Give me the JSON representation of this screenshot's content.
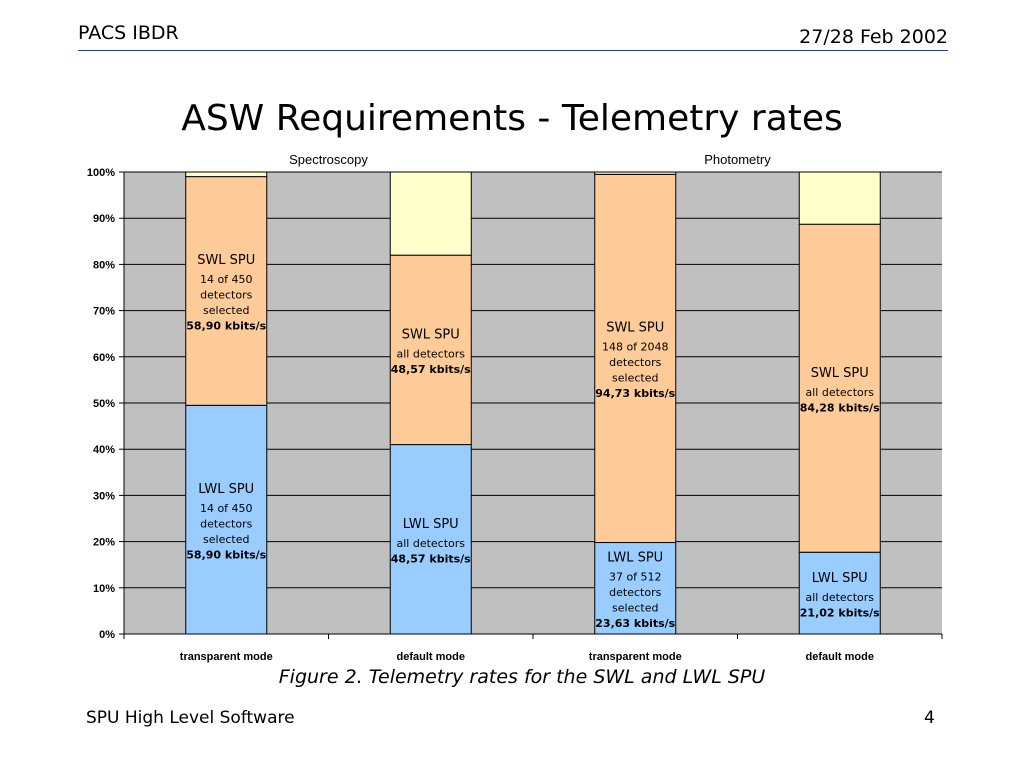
{
  "slide": {
    "header_left": "PACS IBDR",
    "header_right": "27/28 Feb 2002",
    "title": "ASW Requirements - Telemetry rates",
    "caption": "Figure 2. Telemetry rates for the SWL and LWL SPU",
    "footer_left": "SPU High Level Software",
    "page_number": "4"
  },
  "colors": {
    "plot_bg": "#c0c0c0",
    "lwl": "#99ccff",
    "swl": "#ffcc99",
    "free": "#ffffcc",
    "header_rule": "#2a3ab0"
  },
  "chart_data": {
    "type": "bar",
    "stacked": true,
    "group_labels": [
      "Spectroscopy",
      "Photometry"
    ],
    "categories": [
      "transparent mode",
      "default mode",
      "transparent mode",
      "default mode"
    ],
    "ylim": [
      0,
      100
    ],
    "yticks": [
      "0%",
      "10%",
      "20%",
      "30%",
      "40%",
      "50%",
      "60%",
      "70%",
      "80%",
      "90%",
      "100%"
    ],
    "grid": true,
    "series": [
      {
        "key": "lwl",
        "values": [
          49.5,
          41,
          19.8,
          17.7
        ]
      },
      {
        "key": "swl",
        "values": [
          49.5,
          41,
          79.7,
          71
        ]
      },
      {
        "key": "free",
        "values": [
          1.0,
          18,
          0.5,
          11.3
        ]
      }
    ],
    "segment_labels": [
      [
        {
          "name": "LWL SPU",
          "lines": [
            "14 of 450",
            "detectors",
            "selected"
          ],
          "rate": "58,90 kbits/s"
        },
        {
          "name": "SWL SPU",
          "lines": [
            "14 of 450",
            "detectors",
            "selected"
          ],
          "rate": "58,90 kbits/s"
        }
      ],
      [
        {
          "name": "LWL SPU",
          "lines": [
            "all detectors"
          ],
          "rate": "48,57 kbits/s"
        },
        {
          "name": "SWL SPU",
          "lines": [
            "all detectors"
          ],
          "rate": "48,57 kbits/s"
        }
      ],
      [
        {
          "name": "LWL SPU",
          "lines": [
            "37 of 512",
            "detectors",
            "selected"
          ],
          "rate": "23,63 kbits/s"
        },
        {
          "name": "SWL SPU",
          "lines": [
            "148 of 2048",
            "detectors",
            "selected"
          ],
          "rate": "94,73 kbits/s"
        }
      ],
      [
        {
          "name": "LWL SPU",
          "lines": [
            "all detectors"
          ],
          "rate": "21,02 kbits/s"
        },
        {
          "name": "SWL SPU",
          "lines": [
            "all detectors"
          ],
          "rate": "84,28 kbits/s"
        }
      ]
    ]
  }
}
